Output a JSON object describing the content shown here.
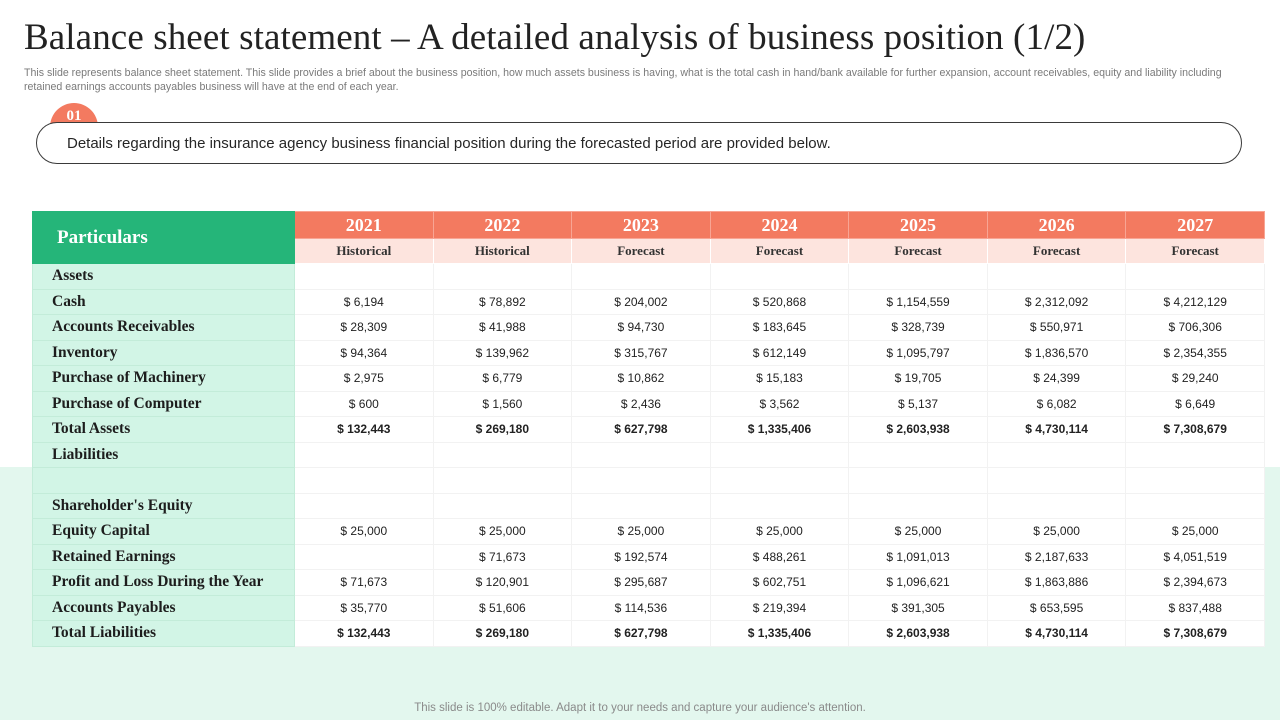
{
  "title": "Balance sheet statement – A detailed analysis of business position (1/2)",
  "description": "This slide represents balance sheet statement. This slide provides a brief about the business position, how much assets business is having, what is the total cash in hand/bank available for further expansion, account receivables, equity and liability including retained earnings accounts payables business will have at the end of each year.",
  "callout": {
    "badge": "01",
    "text": "Details regarding the insurance agency business financial position during the forecasted period are provided below."
  },
  "table": {
    "header_label": "Particulars",
    "years": [
      "2021",
      "2022",
      "2023",
      "2024",
      "2025",
      "2026",
      "2027"
    ],
    "statuses": [
      "Historical",
      "Historical",
      "Forecast",
      "Forecast",
      "Forecast",
      "Forecast",
      "Forecast"
    ],
    "rows": [
      {
        "label": "Assets",
        "values": [
          "",
          "",
          "",
          "",
          "",
          "",
          ""
        ]
      },
      {
        "label": "Cash",
        "values": [
          "$ 6,194",
          "$ 78,892",
          "$ 204,002",
          "$ 520,868",
          "$ 1,154,559",
          "$ 2,312,092",
          "$ 4,212,129"
        ]
      },
      {
        "label": "Accounts Receivables",
        "values": [
          "$ 28,309",
          "$ 41,988",
          "$ 94,730",
          "$ 183,645",
          "$ 328,739",
          "$ 550,971",
          "$ 706,306"
        ]
      },
      {
        "label": "Inventory",
        "values": [
          "$ 94,364",
          "$ 139,962",
          "$ 315,767",
          "$ 612,149",
          "$ 1,095,797",
          "$ 1,836,570",
          "$ 2,354,355"
        ]
      },
      {
        "label": "Purchase of Machinery",
        "values": [
          "$ 2,975",
          "$ 6,779",
          "$ 10,862",
          "$ 15,183",
          "$ 19,705",
          "$ 24,399",
          "$ 29,240"
        ]
      },
      {
        "label": "Purchase of Computer",
        "values": [
          "$ 600",
          "$ 1,560",
          "$ 2,436",
          "$ 3,562",
          "$ 5,137",
          "$ 6,082",
          "$ 6,649"
        ]
      },
      {
        "label": "Total Assets",
        "bold": true,
        "values": [
          "$ 132,443",
          "$ 269,180",
          "$ 627,798",
          "$ 1,335,406",
          "$ 2,603,938",
          "$ 4,730,114",
          "$ 7,308,679"
        ]
      },
      {
        "label": "Liabilities",
        "values": [
          "",
          "",
          "",
          "",
          "",
          "",
          ""
        ]
      },
      {
        "label": "",
        "values": [
          "",
          "",
          "",
          "",
          "",
          "",
          ""
        ]
      },
      {
        "label": "Shareholder's Equity",
        "values": [
          "",
          "",
          "",
          "",
          "",
          "",
          ""
        ]
      },
      {
        "label": "Equity Capital",
        "values": [
          "$ 25,000",
          "$ 25,000",
          "$ 25,000",
          "$ 25,000",
          "$ 25,000",
          "$ 25,000",
          "$ 25,000"
        ]
      },
      {
        "label": "Retained Earnings",
        "values": [
          "",
          "$ 71,673",
          "$ 192,574",
          "$ 488,261",
          "$ 1,091,013",
          "$ 2,187,633",
          "$ 4,051,519"
        ]
      },
      {
        "label": "Profit and Loss During the Year",
        "values": [
          "$ 71,673",
          "$ 120,901",
          "$ 295,687",
          "$ 602,751",
          "$ 1,096,621",
          "$ 1,863,886",
          "$ 2,394,673"
        ]
      },
      {
        "label": "Accounts Payables",
        "values": [
          "$ 35,770",
          "$ 51,606",
          "$ 114,536",
          "$ 219,394",
          "$ 391,305",
          "$ 653,595",
          "$ 837,488"
        ]
      },
      {
        "label": "Total Liabilities",
        "bold": true,
        "values": [
          "$ 132,443",
          "$ 269,180",
          "$ 627,798",
          "$ 1,335,406",
          "$ 2,603,938",
          "$ 4,730,114",
          "$ 7,308,679"
        ]
      }
    ]
  },
  "footer": "This slide is 100% editable. Adapt it to your needs and capture your audience's attention."
}
